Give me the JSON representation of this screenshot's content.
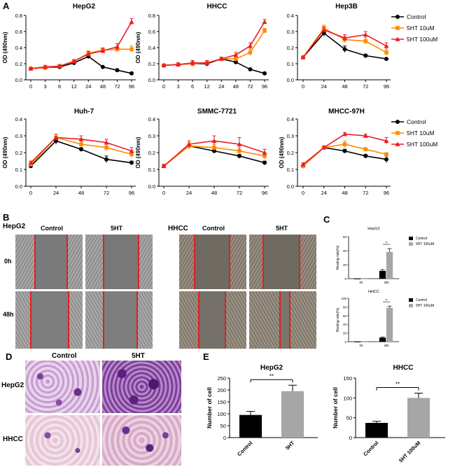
{
  "panel_letters": {
    "a": "A",
    "b": "B",
    "c": "C",
    "d": "D",
    "e": "E"
  },
  "line_legend": [
    {
      "label": "Control",
      "color": "#000000",
      "marker": "circle"
    },
    {
      "label": "5HT 10uM",
      "color": "#ff8c00",
      "marker": "square"
    },
    {
      "label": "5HT 100uM",
      "color": "#ee1c25",
      "marker": "triangle"
    }
  ],
  "panel_b": {
    "cell_lines": [
      "HepG2",
      "HHCC"
    ],
    "conditions": [
      "Control",
      "5HT"
    ],
    "timepoints": [
      "0h",
      "48h"
    ]
  },
  "panel_d": {
    "cell_lines": [
      "HepG2",
      "HHCC"
    ],
    "conditions": [
      "Control",
      "5HT"
    ]
  },
  "chart_data": [
    {
      "type": "line",
      "title": "HepG2",
      "ylabel": "OD (490nm)",
      "categories": [
        "0",
        "3",
        "6",
        "12",
        "24",
        "48",
        "72",
        "96"
      ],
      "ylim": [
        0,
        0.8
      ],
      "yticks": [
        "0.0",
        "0.2",
        "0.4",
        "0.6",
        "0.8"
      ],
      "series": [
        {
          "name": "Control",
          "values": [
            0.14,
            0.15,
            0.16,
            0.21,
            0.29,
            0.16,
            0.12,
            0.08
          ],
          "errors": [
            0.01,
            0.01,
            0.01,
            0.01,
            0.02,
            0.01,
            0.01,
            0.01
          ]
        },
        {
          "name": "5HT 10uM",
          "values": [
            0.14,
            0.15,
            0.17,
            0.23,
            0.33,
            0.37,
            0.38,
            0.38
          ],
          "errors": [
            0.01,
            0.02,
            0.02,
            0.02,
            0.03,
            0.03,
            0.03,
            0.04
          ]
        },
        {
          "name": "5HT 100uM",
          "values": [
            0.14,
            0.16,
            0.17,
            0.23,
            0.32,
            0.36,
            0.41,
            0.72
          ],
          "errors": [
            0.01,
            0.02,
            0.02,
            0.02,
            0.03,
            0.03,
            0.04,
            0.04
          ]
        }
      ]
    },
    {
      "type": "line",
      "title": "HHCC",
      "ylabel": "OD (490nm)",
      "categories": [
        "0",
        "3",
        "6",
        "12",
        "24",
        "48",
        "72",
        "96"
      ],
      "ylim": [
        0,
        0.8
      ],
      "yticks": [
        "0.0",
        "0.2",
        "0.4",
        "0.6",
        "0.8"
      ],
      "series": [
        {
          "name": "Control",
          "values": [
            0.18,
            0.19,
            0.2,
            0.2,
            0.26,
            0.22,
            0.13,
            0.08
          ],
          "errors": [
            0.01,
            0.02,
            0.03,
            0.03,
            0.02,
            0.02,
            0.01,
            0.01
          ]
        },
        {
          "name": "5HT 10uM",
          "values": [
            0.18,
            0.19,
            0.2,
            0.21,
            0.26,
            0.26,
            0.34,
            0.61
          ],
          "errors": [
            0.01,
            0.02,
            0.03,
            0.03,
            0.02,
            0.03,
            0.04,
            0.03
          ]
        },
        {
          "name": "5HT 100uM",
          "values": [
            0.18,
            0.19,
            0.21,
            0.21,
            0.26,
            0.31,
            0.42,
            0.72
          ],
          "errors": [
            0.01,
            0.02,
            0.03,
            0.03,
            0.02,
            0.03,
            0.04,
            0.03
          ]
        }
      ]
    },
    {
      "type": "line",
      "title": "Hep3B",
      "categories": [
        "0",
        "24",
        "48",
        "72",
        "96"
      ],
      "ylim": [
        0,
        0.4
      ],
      "yticks": [
        "0.0",
        "0.1",
        "0.2",
        "0.3",
        "0.4"
      ],
      "series": [
        {
          "name": "Control",
          "values": [
            0.14,
            0.29,
            0.19,
            0.15,
            0.13
          ],
          "errors": [
            0.005,
            0.02,
            0.02,
            0.01,
            0.005
          ]
        },
        {
          "name": "5HT 10uM",
          "values": [
            0.14,
            0.32,
            0.25,
            0.24,
            0.17
          ],
          "errors": [
            0.005,
            0.02,
            0.02,
            0.02,
            0.02
          ]
        },
        {
          "name": "5HT 100uM",
          "values": [
            0.14,
            0.31,
            0.26,
            0.28,
            0.21
          ],
          "errors": [
            0.005,
            0.02,
            0.02,
            0.02,
            0.02
          ]
        }
      ]
    },
    {
      "type": "line",
      "title": "Huh-7",
      "ylabel": "OD (490nm)",
      "categories": [
        "0",
        "24",
        "48",
        "72",
        "96"
      ],
      "ylim": [
        0,
        0.4
      ],
      "yticks": [
        "0.0",
        "0.1",
        "0.2",
        "0.3",
        "0.4"
      ],
      "series": [
        {
          "name": "Control",
          "values": [
            0.12,
            0.27,
            0.22,
            0.16,
            0.14
          ],
          "errors": [
            0.01,
            0.02,
            0.01,
            0.02,
            0.01
          ]
        },
        {
          "name": "5HT 10uM",
          "values": [
            0.13,
            0.29,
            0.25,
            0.23,
            0.19
          ],
          "errors": [
            0.01,
            0.02,
            0.02,
            0.02,
            0.02
          ]
        },
        {
          "name": "5HT 100uM",
          "values": [
            0.14,
            0.29,
            0.28,
            0.26,
            0.21
          ],
          "errors": [
            0.01,
            0.02,
            0.02,
            0.02,
            0.02
          ]
        }
      ]
    },
    {
      "type": "line",
      "title": "SMMC-7721",
      "ylabel": "OD (490nm)",
      "categories": [
        "0",
        "24",
        "48",
        "72",
        "96"
      ],
      "ylim": [
        0,
        0.4
      ],
      "yticks": [
        "0.0",
        "0.1",
        "0.2",
        "0.3",
        "0.4"
      ],
      "series": [
        {
          "name": "Control",
          "values": [
            0.12,
            0.24,
            0.21,
            0.18,
            0.14
          ],
          "errors": [
            0.01,
            0.01,
            0.01,
            0.01,
            0.01
          ]
        },
        {
          "name": "5HT 10uM",
          "values": [
            0.12,
            0.24,
            0.23,
            0.21,
            0.18
          ],
          "errors": [
            0.01,
            0.02,
            0.02,
            0.02,
            0.02
          ]
        },
        {
          "name": "5HT 100uM",
          "values": [
            0.12,
            0.25,
            0.27,
            0.25,
            0.2
          ],
          "errors": [
            0.01,
            0.02,
            0.03,
            0.04,
            0.02
          ]
        }
      ]
    },
    {
      "type": "line",
      "title": "MHCC-97H",
      "ylabel": "OD (490nm)",
      "categories": [
        "0",
        "24",
        "48",
        "72",
        "96"
      ],
      "ylim": [
        0,
        0.4
      ],
      "yticks": [
        "0.0",
        "0.1",
        "0.2",
        "0.3",
        "0.4"
      ],
      "series": [
        {
          "name": "Control",
          "values": [
            0.12,
            0.23,
            0.21,
            0.18,
            0.16
          ],
          "errors": [
            0.01,
            0.01,
            0.01,
            0.01,
            0.02
          ]
        },
        {
          "name": "5HT 10uM",
          "values": [
            0.12,
            0.23,
            0.25,
            0.22,
            0.19
          ],
          "errors": [
            0.01,
            0.01,
            0.02,
            0.01,
            0.01
          ]
        },
        {
          "name": "5HT 100uM",
          "values": [
            0.13,
            0.23,
            0.31,
            0.3,
            0.27
          ],
          "errors": [
            0.01,
            0.01,
            0.01,
            0.01,
            0.02
          ]
        }
      ]
    },
    {
      "type": "bar",
      "title": "HepG2",
      "ylabel": "Healing rate(%)",
      "categories": [
        "0h",
        "48h"
      ],
      "ylim": [
        0,
        60
      ],
      "yticks": [
        "0",
        "20",
        "40",
        "60"
      ],
      "series": [
        {
          "name": "Control",
          "values": [
            0,
            11
          ],
          "errors": [
            0,
            2
          ],
          "color": "#000000"
        },
        {
          "name": "5HT 100uM",
          "values": [
            0,
            38
          ],
          "errors": [
            0,
            5
          ],
          "color": "#a6a6a6"
        }
      ],
      "significance": "**"
    },
    {
      "type": "bar",
      "title": "HHCC",
      "ylabel": "Healing rate(%)",
      "categories": [
        "0h",
        "48h"
      ],
      "ylim": [
        0,
        100
      ],
      "yticks": [
        "0",
        "20",
        "40",
        "60",
        "80",
        "100"
      ],
      "series": [
        {
          "name": "Control",
          "values": [
            0,
            9
          ],
          "errors": [
            0,
            2
          ],
          "color": "#000000"
        },
        {
          "name": "5HT 100uM",
          "values": [
            0,
            78
          ],
          "errors": [
            0,
            4
          ],
          "color": "#a6a6a6"
        }
      ],
      "significance": "**"
    },
    {
      "type": "bar",
      "title": "HepG2",
      "ylabel": "Number of cell",
      "categories": [
        "Control",
        "5HT"
      ],
      "values": [
        95,
        195
      ],
      "errors": [
        15,
        25
      ],
      "colors": [
        "#000000",
        "#a6a6a6"
      ],
      "ylim": [
        0,
        250
      ],
      "yticks": [
        "0",
        "50",
        "100",
        "150",
        "200",
        "250"
      ],
      "significance": "**"
    },
    {
      "type": "bar",
      "title": "HHCC",
      "ylabel": "Number of cell",
      "categories": [
        "Control",
        "5HT 100uM"
      ],
      "values": [
        37,
        100
      ],
      "errors": [
        4,
        12
      ],
      "colors": [
        "#000000",
        "#a6a6a6"
      ],
      "ylim": [
        0,
        150
      ],
      "yticks": [
        "0",
        "50",
        "100",
        "150"
      ],
      "significance": "**"
    }
  ]
}
